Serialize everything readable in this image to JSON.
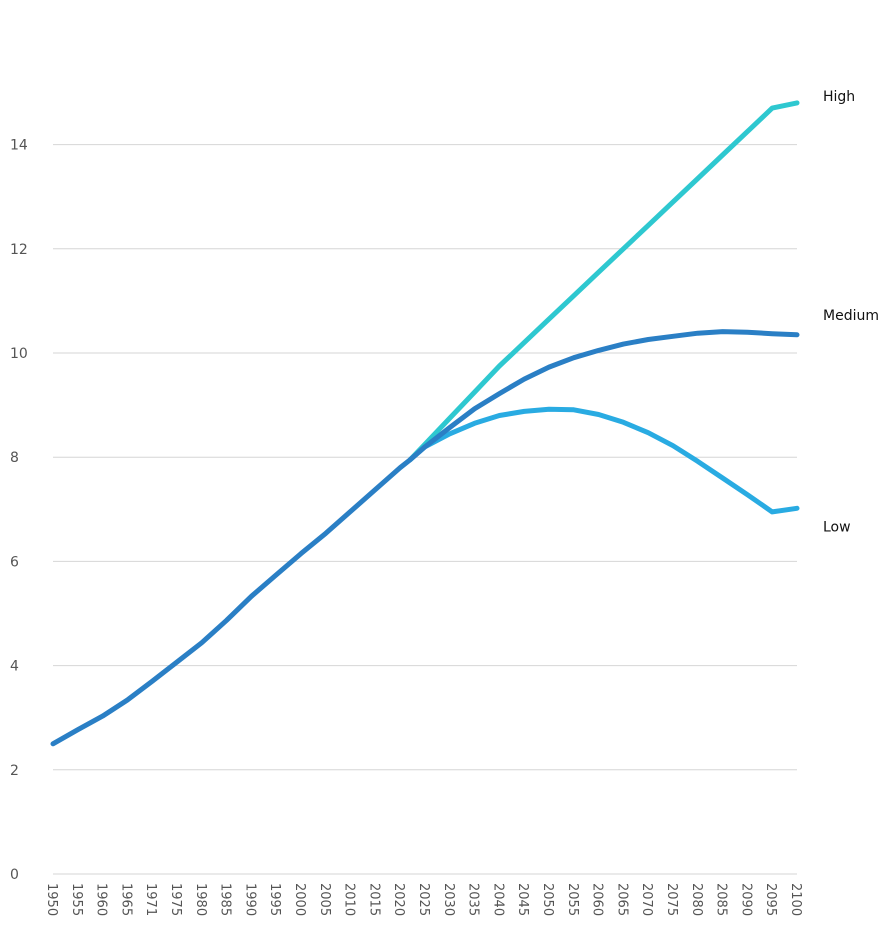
{
  "chart_data": {
    "type": "line",
    "title": "",
    "xlabel": "",
    "ylabel": "",
    "ylim": [
      0,
      15
    ],
    "y_ticks": [
      0,
      2,
      4,
      6,
      8,
      10,
      12,
      14
    ],
    "x_ticks": [
      "1950",
      "1955",
      "1960",
      "1965",
      "1971",
      "1975",
      "1980",
      "1985",
      "1990",
      "1995",
      "2000",
      "2005",
      "2010",
      "2015",
      "2020",
      "2025",
      "2030",
      "2035",
      "2040",
      "2045",
      "2050",
      "2055",
      "2060",
      "2065",
      "2070",
      "2075",
      "2080",
      "2085",
      "2090",
      "2095",
      "2100"
    ],
    "xlim": [
      1950,
      2100
    ],
    "grid": true,
    "legend": "right-end-labels",
    "series": [
      {
        "name": "High",
        "color": "#2ec8d0",
        "x": [
          2022,
          2025,
          2030,
          2035,
          2040,
          2045,
          2050,
          2055,
          2060,
          2065,
          2070,
          2075,
          2080,
          2085,
          2090,
          2095,
          2100
        ],
        "values": [
          7.95,
          8.25,
          8.75,
          9.25,
          9.75,
          10.2,
          10.65,
          11.1,
          11.55,
          12.0,
          12.45,
          12.9,
          13.35,
          13.8,
          14.25,
          14.7,
          14.8
        ]
      },
      {
        "name": "Medium",
        "color": "#2a7fc5",
        "x": [
          1950,
          1955,
          1960,
          1965,
          1970,
          1975,
          1980,
          1985,
          1990,
          1995,
          2000,
          2005,
          2010,
          2015,
          2020,
          2022,
          2025,
          2030,
          2035,
          2040,
          2045,
          2050,
          2055,
          2060,
          2065,
          2070,
          2075,
          2080,
          2085,
          2090,
          2095,
          2100
        ],
        "values": [
          2.5,
          2.77,
          3.03,
          3.34,
          3.7,
          4.07,
          4.44,
          4.87,
          5.33,
          5.74,
          6.15,
          6.54,
          6.96,
          7.38,
          7.8,
          7.95,
          8.2,
          8.57,
          8.93,
          9.22,
          9.5,
          9.73,
          9.91,
          10.05,
          10.17,
          10.26,
          10.32,
          10.38,
          10.41,
          10.4,
          10.37,
          10.35
        ]
      },
      {
        "name": "Low",
        "color": "#29abe2",
        "x": [
          2022,
          2025,
          2030,
          2035,
          2040,
          2045,
          2050,
          2055,
          2060,
          2065,
          2070,
          2075,
          2080,
          2085,
          2090,
          2095,
          2100
        ],
        "values": [
          7.95,
          8.2,
          8.45,
          8.65,
          8.8,
          8.88,
          8.92,
          8.91,
          8.82,
          8.67,
          8.47,
          8.22,
          7.92,
          7.6,
          7.28,
          6.95,
          7.02
        ]
      }
    ]
  }
}
